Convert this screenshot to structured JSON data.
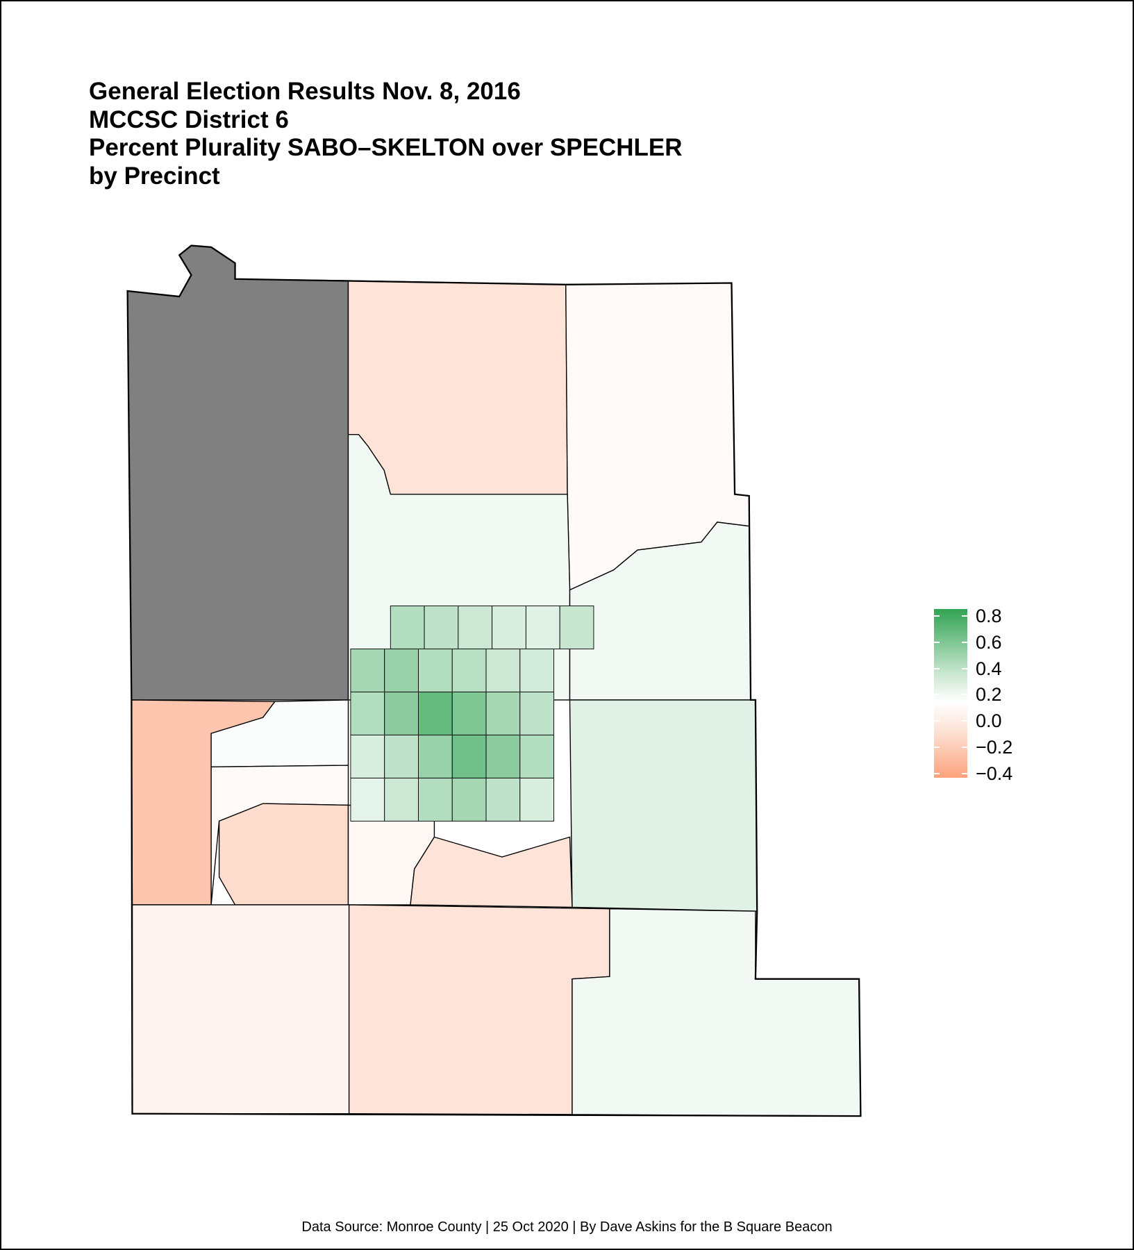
{
  "title_lines": [
    "General Election Results Nov. 8, 2016",
    "MCCSC District 6",
    "Percent Plurality SABO–SKELTON over SPECHLER",
    "by Precinct"
  ],
  "caption": "Data Source: Monroe County | 25 Oct 2020 | By Dave Askins for the B Square Beacon",
  "chart_data": {
    "type": "choropleth",
    "title": "General Election Results Nov. 8, 2016 / MCCSC District 6 / Percent Plurality SABO–SKELTON over SPECHLER / by Precinct",
    "legend": {
      "placement": "right",
      "ticks": [
        "0.8",
        "0.6",
        "0.4",
        "0.2",
        "0.0",
        "−0.2",
        "−0.4"
      ],
      "range": [
        -0.4,
        0.8
      ],
      "colors": {
        "high": "#31a354",
        "mid": "#ffffff",
        "low": "#fca27c",
        "no_data": "#808080"
      }
    },
    "region_values": [
      null,
      -0.12,
      -0.02,
      0.05,
      0.05,
      0.12,
      -0.25,
      0.02,
      -0.02,
      -0.15,
      -0.03,
      -0.12,
      -0.05,
      -0.12,
      0.05
    ],
    "city_precinct_values": [
      0.3,
      0.25,
      0.2,
      0.15,
      0.12,
      0.22,
      0.35,
      0.4,
      0.3,
      0.28,
      0.2,
      0.18,
      0.3,
      0.45,
      0.6,
      0.5,
      0.35,
      0.25,
      0.15,
      0.25,
      0.4,
      0.55,
      0.45,
      0.3,
      0.1,
      0.2,
      0.3,
      0.35,
      0.25,
      0.15
    ]
  }
}
